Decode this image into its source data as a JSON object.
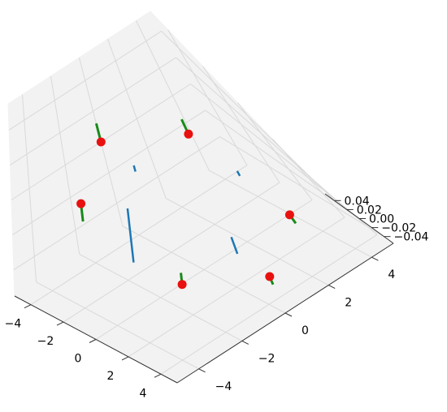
{
  "chart_data": {
    "type": "scatter",
    "projection": "3d",
    "title": "",
    "xlabel": "",
    "ylabel": "",
    "zlabel": "",
    "grid": true,
    "xlim": [
      -5,
      5
    ],
    "ylim": [
      -5,
      5
    ],
    "zlim": [
      -0.055,
      0.055
    ],
    "x_ticks": [
      "−4",
      "−2",
      "0",
      "2",
      "4"
    ],
    "y_ticks": [
      "−4",
      "−2",
      "0",
      "2",
      "4"
    ],
    "z_ticks": [
      "0.04",
      "0.02",
      "0.00",
      "−0.02",
      "−0.04"
    ],
    "series": [
      {
        "marker": "circle",
        "color": "#e8110f",
        "points": [
          {
            "x": -3.0,
            "y": 3.0,
            "z": 0.0
          },
          {
            "x": 3.0,
            "y": 3.0,
            "z": 0.0
          },
          {
            "x": 3.0,
            "y": -3.0,
            "z": 0.0
          },
          {
            "x": -3.0,
            "y": -3.0,
            "z": 0.0
          },
          {
            "x": -5.0,
            "y": 0.0,
            "z": 0.0
          },
          {
            "x": 5.0,
            "y": 0.0,
            "z": 0.0
          }
        ]
      },
      {
        "marker": "stem",
        "color": "#1a8a1a",
        "segments": [
          {
            "x": -3.0,
            "y": 3.0,
            "z0": 0.0,
            "z1": 0.012
          },
          {
            "x": 3.0,
            "y": 3.0,
            "z0": 0.0,
            "z1": -0.012
          },
          {
            "x": 3.0,
            "y": -3.0,
            "z0": 0.0,
            "z1": 0.012
          },
          {
            "x": -3.0,
            "y": -3.0,
            "z0": 0.0,
            "z1": -0.012
          },
          {
            "x": -5.0,
            "y": 0.0,
            "z0": 0.0,
            "z1": 0.012
          },
          {
            "x": 5.0,
            "y": 0.0,
            "z0": 0.0,
            "z1": -0.012
          }
        ]
      },
      {
        "marker": "segment",
        "color": "#1f77b4",
        "segments": [
          {
            "x": 0.0,
            "y": 3.0,
            "z0": -0.0015,
            "z1": 0.0035
          },
          {
            "x": 3.0,
            "y": 0.0,
            "z0": -0.005,
            "z1": 0.015
          },
          {
            "x": 0.0,
            "y": -3.0,
            "z0": -0.015,
            "z1": 0.029
          },
          {
            "x": -3.0,
            "y": 0.0,
            "z0": -0.002,
            "z1": 0.0025
          }
        ]
      }
    ]
  }
}
